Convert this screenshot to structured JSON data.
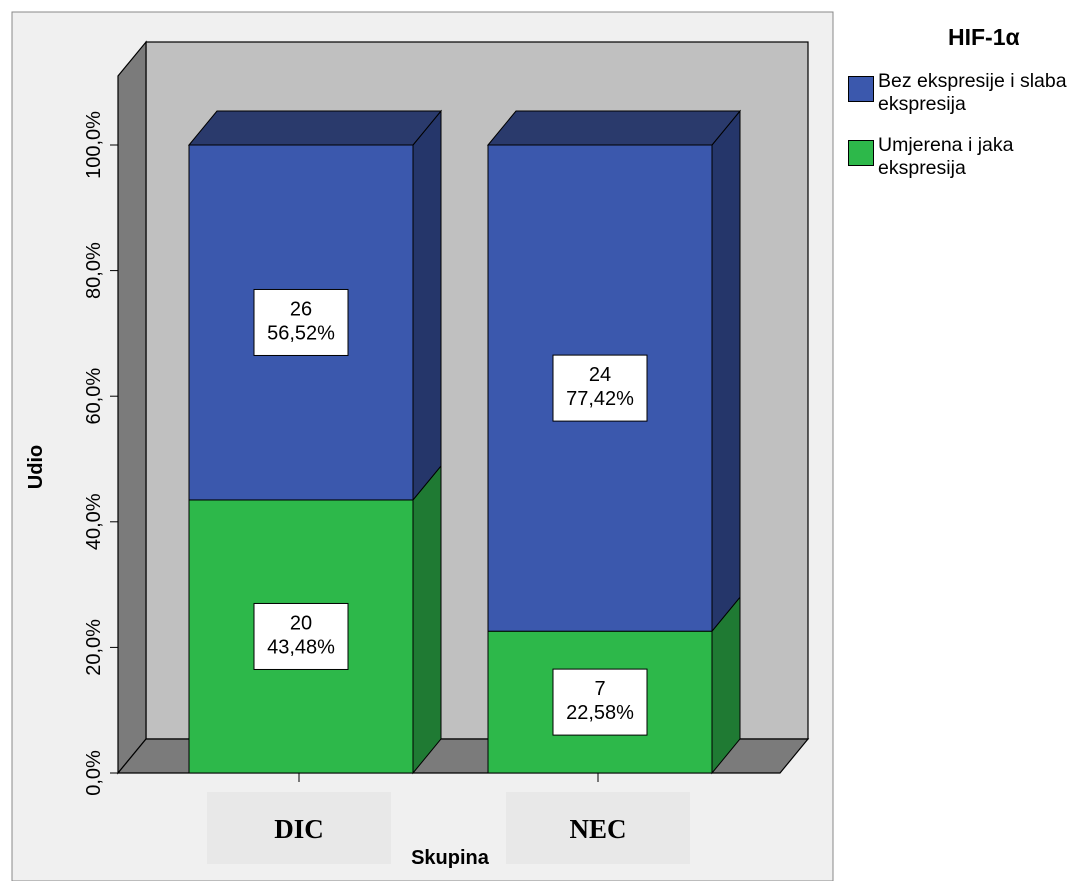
{
  "chart_data": {
    "type": "bar",
    "stacked": true,
    "percent": true,
    "three_d": true,
    "categories": [
      "DIC",
      "NEC"
    ],
    "series": [
      {
        "name": "Umjerena i jaka ekspresija",
        "color": "#2db84a",
        "counts": [
          20,
          7
        ],
        "percent_labels": [
          "43,48%",
          "22,58%"
        ],
        "values": [
          43.48,
          22.58
        ]
      },
      {
        "name": "Bez ekspresije i slaba ekspresija",
        "color": "#3b58ad",
        "counts": [
          26,
          24
        ],
        "percent_labels": [
          "56,52%",
          "77,42%"
        ],
        "values": [
          56.52,
          77.42
        ]
      }
    ],
    "xlabel": "Skupina",
    "ylabel": "Udio",
    "ylim": [
      0,
      100
    ],
    "yticks": [
      0,
      20,
      40,
      60,
      80,
      100
    ],
    "ytick_labels": [
      "0,0%",
      "20,0%",
      "40,0%",
      "60,0%",
      "80,0%",
      "100,0%"
    ],
    "legend_title": "HIF-1α",
    "legend_position": "right",
    "colors": {
      "back_wall": "#c0c0c0",
      "side_wall": "#7b7b7b",
      "floor": "#7b7b7b",
      "plot_background": "#f0f0f0",
      "blue_top": "#2a3a6c",
      "blue_side": "#25366a",
      "green_top": "#1f7a33",
      "green_side": "#1f7a33"
    }
  },
  "legend": {
    "title": "HIF-1α",
    "items": [
      {
        "label": "Bez ekspresije i slaba ekspresija",
        "color": "#3b58ad"
      },
      {
        "label": "Umjerena i jaka ekspresija",
        "color": "#2db84a"
      }
    ]
  }
}
